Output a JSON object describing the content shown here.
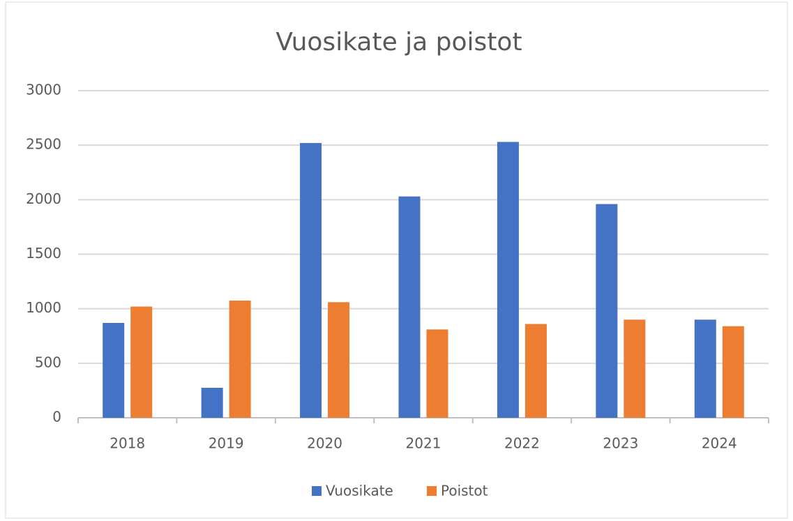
{
  "chart_data": {
    "type": "bar",
    "title": "Vuosikate ja poistot",
    "categories": [
      "2018",
      "2019",
      "2020",
      "2021",
      "2022",
      "2023",
      "2024"
    ],
    "series": [
      {
        "name": "Vuosikate",
        "color": "#4472c4",
        "values": [
          870,
          275,
          2520,
          2030,
          2530,
          1960,
          900
        ]
      },
      {
        "name": "Poistot",
        "color": "#ed7d31",
        "values": [
          1020,
          1075,
          1060,
          810,
          860,
          900,
          840
        ]
      }
    ],
    "ylim": [
      0,
      3000
    ],
    "yticks": [
      0,
      500,
      1000,
      1500,
      2000,
      2500,
      3000
    ],
    "grid": true,
    "legend": "bottom"
  }
}
